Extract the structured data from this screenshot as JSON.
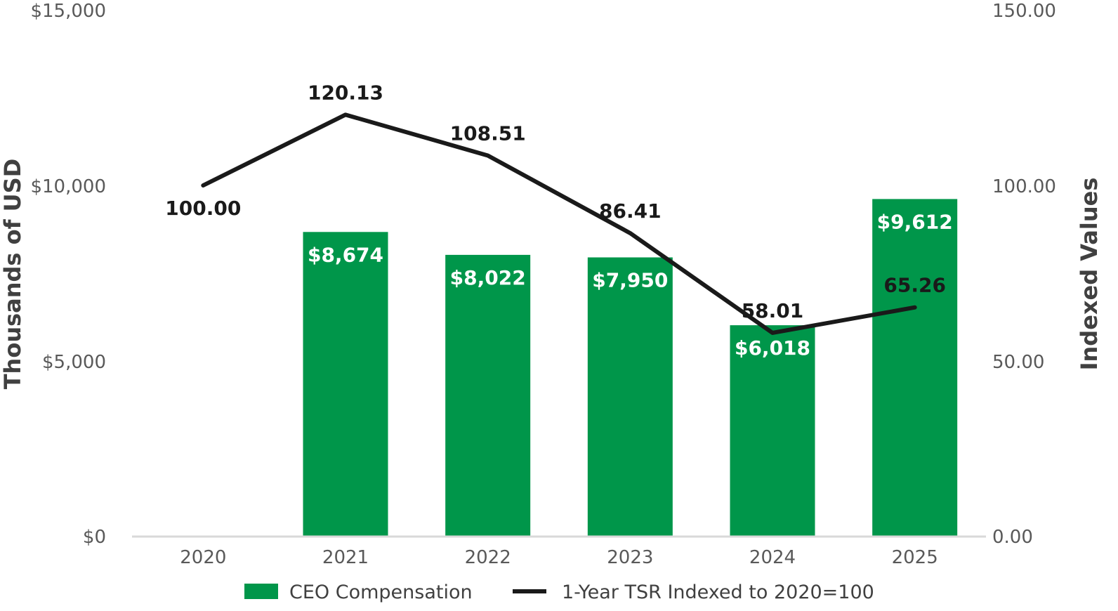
{
  "chart_data": {
    "type": "bar",
    "categories": [
      "2020",
      "2021",
      "2022",
      "2023",
      "2024",
      "2025"
    ],
    "series": [
      {
        "name": "CEO Compensation",
        "type": "bar",
        "axis": "left",
        "values": [
          null,
          8674,
          8022,
          7950,
          6018,
          9612
        ],
        "labels": [
          "",
          "$8,674",
          "$8,022",
          "$7,950",
          "$6,018",
          "$9,612"
        ],
        "color": "#00964a"
      },
      {
        "name": "1-Year TSR Indexed to 2020=100",
        "type": "line",
        "axis": "right",
        "values": [
          100.0,
          120.13,
          108.51,
          86.41,
          58.01,
          65.26
        ],
        "labels": [
          "100.00",
          "120.13",
          "108.51",
          "86.41",
          "58.01",
          "65.26"
        ],
        "color": "#1a1a1a"
      }
    ],
    "ylabel": "Thousands of USD",
    "ylabel_right": "Indexed Values",
    "ylim": [
      0,
      15000
    ],
    "ylim_right": [
      0,
      150
    ],
    "yticks": [
      "$0",
      "$5,000",
      "$10,000",
      "$15,000"
    ],
    "yticks_right": [
      "0.00",
      "50.00",
      "100.00",
      "150.00"
    ],
    "grid": false,
    "legend_position": "bottom",
    "axis_color": "#d9d9d9"
  }
}
